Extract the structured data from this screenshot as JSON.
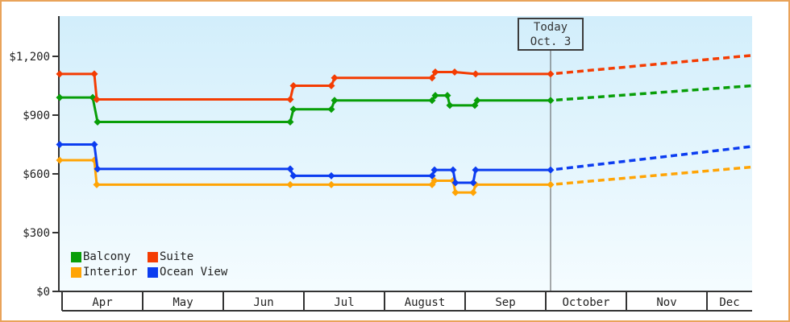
{
  "frame": {
    "border_color": "#e9a35a"
  },
  "chart_data": {
    "type": "line",
    "title": "",
    "y_axis": {
      "tick_labels": [
        "$1,200",
        "$900",
        "$600",
        "$300",
        "$0"
      ],
      "tick_values": [
        1200,
        900,
        600,
        300,
        0
      ],
      "ylim": [
        0,
        1400
      ],
      "grid": false
    },
    "x_axis": {
      "month_labels": [
        "Apr",
        "May",
        "Jun",
        "Jul",
        "August",
        "Sep",
        "October",
        "Nov",
        "Dec"
      ]
    },
    "today_marker": {
      "title": "Today",
      "date": "Oct. 3",
      "month_frac": 6.06
    },
    "legend": [
      {
        "label": "Balcony",
        "color": "#089e08"
      },
      {
        "label": "Suite",
        "color": "#f43c02"
      },
      {
        "label": "Interior",
        "color": "#ffa405"
      },
      {
        "label": "Ocean View",
        "color": "#0b3cf0"
      }
    ],
    "legend_position": "bottom-left",
    "x_unit_note": "month_frac: 0 = start of Apr, 1.0 = one month",
    "series": [
      {
        "name": "Interior",
        "color": "#ffa405",
        "points": [
          [
            -0.03,
            670
          ],
          [
            0.4,
            670
          ],
          [
            0.43,
            545
          ],
          [
            2.83,
            545
          ],
          [
            3.34,
            545
          ],
          [
            4.59,
            545
          ],
          [
            4.62,
            565
          ],
          [
            4.85,
            565
          ],
          [
            4.88,
            505
          ],
          [
            5.1,
            505
          ],
          [
            5.13,
            545
          ],
          [
            6.06,
            545
          ]
        ],
        "projection_end": [
          8.56,
          635
        ]
      },
      {
        "name": "Ocean View",
        "color": "#0b3cf0",
        "points": [
          [
            -0.03,
            750
          ],
          [
            0.4,
            750
          ],
          [
            0.44,
            625
          ],
          [
            2.83,
            625
          ],
          [
            2.87,
            590
          ],
          [
            3.34,
            590
          ],
          [
            4.59,
            590
          ],
          [
            4.62,
            620
          ],
          [
            4.85,
            620
          ],
          [
            4.88,
            555
          ],
          [
            5.1,
            555
          ],
          [
            5.13,
            620
          ],
          [
            6.06,
            620
          ]
        ],
        "projection_end": [
          8.56,
          740
        ]
      },
      {
        "name": "Balcony",
        "color": "#089e08",
        "points": [
          [
            -0.03,
            990
          ],
          [
            0.38,
            990
          ],
          [
            0.44,
            865
          ],
          [
            2.83,
            865
          ],
          [
            2.87,
            930
          ],
          [
            3.34,
            930
          ],
          [
            3.38,
            975
          ],
          [
            4.59,
            975
          ],
          [
            4.63,
            1000
          ],
          [
            4.78,
            1000
          ],
          [
            4.81,
            950
          ],
          [
            5.12,
            950
          ],
          [
            5.15,
            975
          ],
          [
            6.06,
            975
          ]
        ],
        "projection_end": [
          8.56,
          1050
        ]
      },
      {
        "name": "Suite",
        "color": "#f43c02",
        "points": [
          [
            -0.03,
            1110
          ],
          [
            0.4,
            1110
          ],
          [
            0.43,
            980
          ],
          [
            2.83,
            980
          ],
          [
            2.87,
            1050
          ],
          [
            3.34,
            1050
          ],
          [
            3.38,
            1090
          ],
          [
            4.59,
            1090
          ],
          [
            4.63,
            1120
          ],
          [
            4.87,
            1120
          ],
          [
            5.13,
            1110
          ],
          [
            6.06,
            1110
          ]
        ],
        "projection_end": [
          8.56,
          1205
        ]
      }
    ]
  }
}
